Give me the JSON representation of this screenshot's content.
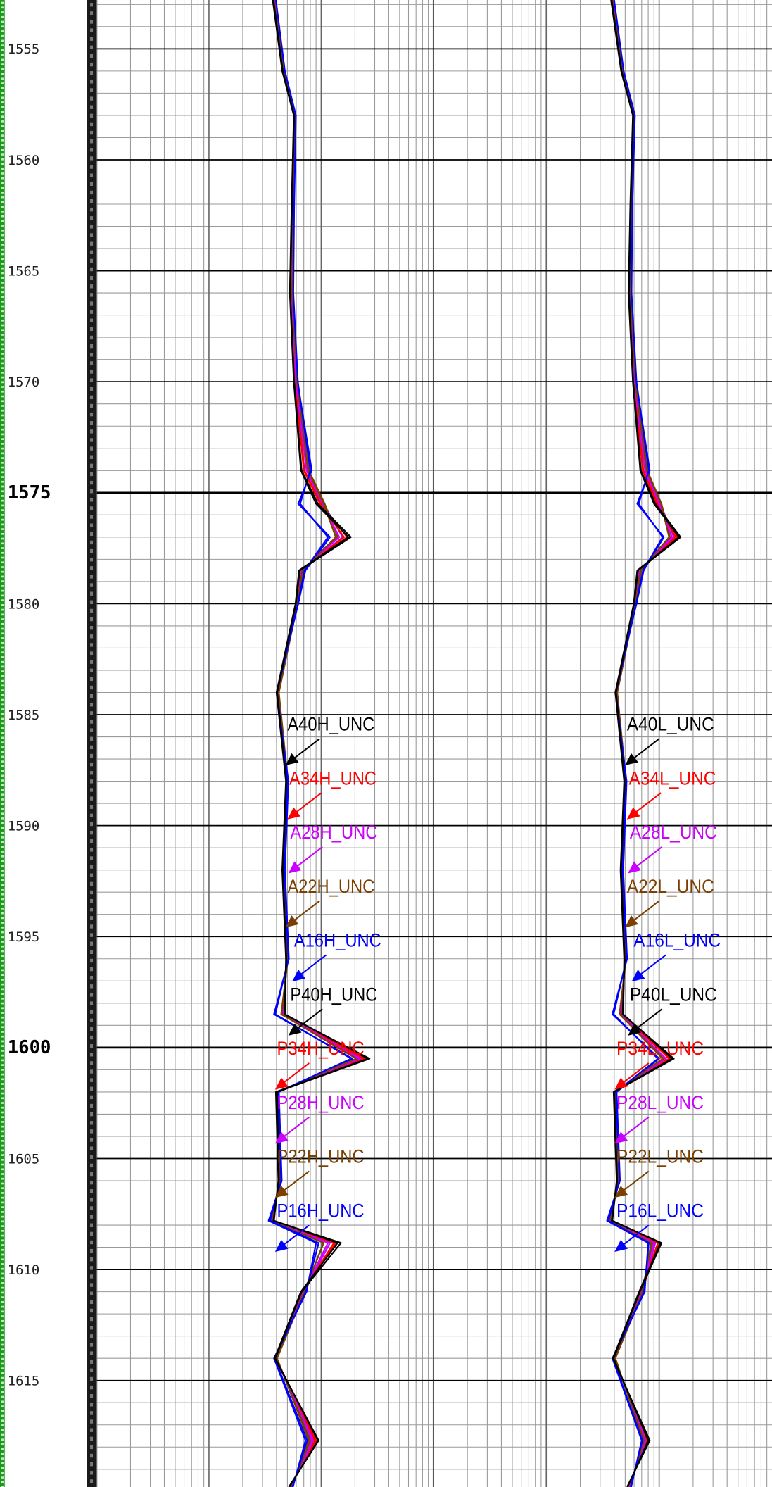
{
  "chart_data": {
    "type": "well-log",
    "ylim": [
      1552.8,
      1619.8
    ],
    "yticks": [
      1555,
      1560,
      1565,
      1570,
      1575,
      1580,
      1585,
      1590,
      1595,
      1600,
      1605,
      1610,
      1615
    ],
    "xlim": [
      0.2,
      200
    ],
    "x_log": true,
    "grid": true,
    "y": [
      1552.8,
      1556,
      1558,
      1562,
      1566,
      1570,
      1574,
      1575.5,
      1577,
      1578.5,
      1580,
      1584,
      1588,
      1592,
      1596,
      1598.5,
      1600.5,
      1602,
      1606,
      1607.8,
      1608.8,
      1611,
      1614,
      1617.7,
      1619.8
    ],
    "tracks": [
      {
        "series": [
          {
            "name": "A40H_UNC",
            "color": "#000000",
            "values": [
              7.5,
              9.1,
              11.5,
              11,
              10.6,
              11.5,
              13.4,
              18.7,
              36.8,
              12.9,
              11.9,
              8.1,
              9.8,
              9.1,
              9.8,
              9.4,
              54,
              8.1,
              8.4,
              7.5,
              30,
              13.4,
              7.8,
              18.7,
              10.4
            ]
          },
          {
            "name": "A34H_UNC",
            "color": "#ff0000",
            "values": [
              7.6,
              9.2,
              11.6,
              11.2,
              10.8,
              11.8,
              14.2,
              20,
              34,
              13.2,
              12,
              8.2,
              9.9,
              9.2,
              9.9,
              9.2,
              50,
              8.0,
              8.5,
              7.4,
              27,
              13.8,
              7.9,
              17.5,
              10.6
            ]
          },
          {
            "name": "A28H_UNC",
            "color": "#cc00ff",
            "values": [
              7.7,
              9.3,
              11.7,
              11.3,
              11,
              12,
              15,
              21,
              31,
              13.5,
              12.2,
              8.3,
              10,
              9.3,
              10,
              9,
              46,
              8.2,
              8.6,
              7.3,
              24,
              14,
              8,
              16.5,
              10.8
            ]
          },
          {
            "name": "A22H_UNC",
            "color": "#7b3f00",
            "values": [
              7.5,
              9.2,
              11.6,
              11.1,
              10.9,
              12.1,
              15.5,
              21.5,
              28,
              13.8,
              12.3,
              8.4,
              10.1,
              9.4,
              10.1,
              8.8,
              42,
              8.3,
              8.7,
              7.2,
              21,
              14.2,
              8.1,
              15.5,
              11
            ]
          },
          {
            "name": "A16H_UNC",
            "color": "#0000ff",
            "values": [
              7.8,
              9.4,
              11.8,
              11.4,
              11.2,
              12.3,
              16.5,
              12.5,
              24,
              14.5,
              12.5,
              8,
              10.2,
              9.5,
              10.3,
              7.6,
              38,
              8.4,
              8.9,
              6.8,
              18,
              14.8,
              7.6,
              14.5,
              11.2
            ]
          },
          {
            "name": "P40H_UNC",
            "color": "#000000",
            "values": [
              7.4,
              9.0,
              11.4,
              10.9,
              10.5,
              11.4,
              13.2,
              18,
              35,
              12.7,
              11.8,
              8.0,
              9.7,
              9.0,
              9.7,
              9.5,
              52,
              7.9,
              8.3,
              7.6,
              28,
              13.2,
              7.7,
              19,
              10.3
            ]
          },
          {
            "name": "P34H_UNC",
            "color": "#ff0000",
            "values": [
              7.6,
              9.1,
              11.5,
              11.1,
              10.7,
              11.7,
              14,
              19.5,
              32,
              13,
              11.9,
              8.1,
              9.8,
              9.1,
              9.8,
              9.3,
              48,
              8.0,
              8.4,
              7.4,
              26,
              13.6,
              7.8,
              18,
              10.5
            ]
          },
          {
            "name": "P28H_UNC",
            "color": "#cc00ff",
            "values": [
              7.7,
              9.2,
              11.6,
              11.2,
              10.9,
              11.9,
              14.8,
              20.5,
              29,
              13.3,
              12.1,
              8.2,
              9.9,
              9.2,
              9.9,
              9.1,
              44,
              8.1,
              8.5,
              7.3,
              23,
              13.9,
              7.9,
              17,
              10.7
            ]
          },
          {
            "name": "P22H_UNC",
            "color": "#7b3f00",
            "values": [
              7.6,
              9.3,
              11.7,
              11.3,
              11,
              12.2,
              15.3,
              21,
              27,
              13.6,
              12.2,
              8.3,
              10,
              9.3,
              10,
              8.9,
              41,
              8.2,
              8.6,
              7.2,
              21,
              14.1,
              8,
              16,
              10.9
            ]
          },
          {
            "name": "P16H_UNC",
            "color": "#0000ff",
            "values": [
              7.9,
              9.5,
              11.9,
              11.5,
              11.3,
              12.4,
              16,
              13,
              23,
              14.2,
              12.4,
              8.1,
              10.1,
              9.4,
              10.2,
              7.8,
              37,
              8.3,
              8.8,
              7,
              19,
              14.6,
              7.7,
              15,
              11.1
            ]
          }
        ]
      },
      {
        "series": [
          {
            "name": "A40L_UNC",
            "color": "#000000",
            "values": [
              7.6,
              9.3,
              11.8,
              11.2,
              10.8,
              11.8,
              13.8,
              18.5,
              31,
              13,
              12,
              8.3,
              9.9,
              9.2,
              9.9,
              9.5,
              27,
              8.0,
              8.5,
              7.6,
              21,
              13.5,
              7.9,
              16,
              10.5
            ]
          },
          {
            "name": "A34L_UNC",
            "color": "#ff0000",
            "values": [
              7.7,
              9.4,
              11.9,
              11.3,
              11,
              12,
              14.5,
              19.5,
              29,
              13.3,
              12.1,
              8.4,
              10,
              9.3,
              10,
              9.3,
              25,
              8.1,
              8.6,
              7.5,
              20,
              13.9,
              8,
              15.5,
              10.7
            ]
          },
          {
            "name": "A28L_UNC",
            "color": "#cc00ff",
            "values": [
              7.8,
              9.5,
              12,
              11.4,
              11.1,
              12.2,
              15.2,
              20.5,
              27,
              13.6,
              12.3,
              8.5,
              10.1,
              9.4,
              10.1,
              9.1,
              23,
              8.2,
              8.7,
              7.4,
              18.5,
              14.1,
              8.1,
              15,
              10.9
            ]
          },
          {
            "name": "A22L_UNC",
            "color": "#7b3f00",
            "values": [
              7.6,
              9.4,
              11.9,
              11.2,
              11,
              12.3,
              15.7,
              21,
              25,
              13.9,
              12.4,
              8.5,
              10.2,
              9.5,
              10.2,
              8.9,
              22,
              8.3,
              8.8,
              7.3,
              17.5,
              14.3,
              8.2,
              14.5,
              11.1
            ]
          },
          {
            "name": "A16L_UNC",
            "color": "#0000ff",
            "values": [
              7.9,
              9.6,
              12.1,
              11.5,
              11.3,
              12.5,
              16.5,
              12.8,
              22,
              14.6,
              12.6,
              8.2,
              10.3,
              9.6,
              10.4,
              7.7,
              20,
              8.4,
              9,
              6.9,
              16,
              14.9,
              7.7,
              14,
              11.3
            ]
          },
          {
            "name": "P40L_UNC",
            "color": "#000000",
            "values": [
              7.5,
              9.2,
              11.7,
              11.1,
              10.7,
              11.7,
              13.6,
              18,
              30,
              12.8,
              11.9,
              8.2,
              9.8,
              9.1,
              9.8,
              9.6,
              26,
              7.9,
              8.4,
              7.7,
              20.5,
              13.3,
              7.8,
              16.5,
              10.4
            ]
          },
          {
            "name": "P34L_UNC",
            "color": "#ff0000",
            "values": [
              7.7,
              9.3,
              11.8,
              11.2,
              10.9,
              11.9,
              14.3,
              19,
              28,
              13.1,
              12,
              8.3,
              9.9,
              9.2,
              9.9,
              9.4,
              24.5,
              8,
              8.5,
              7.5,
              19.5,
              13.7,
              7.9,
              15.8,
              10.6
            ]
          },
          {
            "name": "P28L_UNC",
            "color": "#cc00ff",
            "values": [
              7.8,
              9.4,
              11.9,
              11.3,
              11,
              12.1,
              15,
              20,
              26,
              13.4,
              12.2,
              8.4,
              10,
              9.3,
              10,
              9.2,
              23,
              8.1,
              8.6,
              7.4,
              18,
              14,
              8,
              15.2,
              10.8
            ]
          },
          {
            "name": "P22L_UNC",
            "color": "#7b3f00",
            "values": [
              7.7,
              9.5,
              12,
              11.4,
              11.1,
              12.3,
              15.5,
              20.8,
              24.5,
              13.7,
              12.3,
              8.5,
              10.1,
              9.4,
              10.1,
              9,
              21.5,
              8.2,
              8.7,
              7.3,
              17,
              14.2,
              8.1,
              14.7,
              11
            ]
          },
          {
            "name": "P16L_UNC",
            "color": "#0000ff",
            "values": [
              8,
              9.7,
              12.2,
              11.6,
              11.4,
              12.6,
              16.2,
              13.2,
              21.5,
              14.4,
              12.5,
              8.3,
              10.2,
              9.5,
              10.3,
              7.9,
              19.5,
              8.3,
              8.9,
              7.1,
              16.2,
              14.7,
              7.8,
              14.2,
              11.2
            ]
          }
        ]
      }
    ]
  }
}
